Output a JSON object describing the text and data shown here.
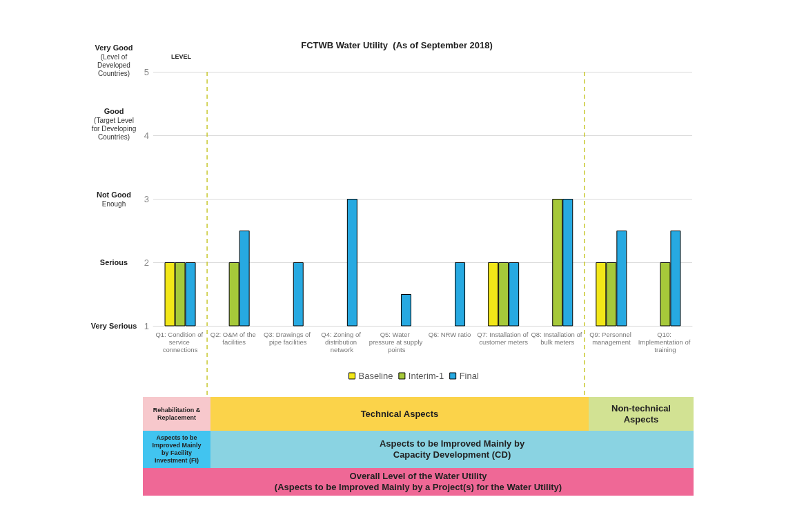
{
  "chart_data": {
    "type": "bar",
    "title": "FCTWB Water Utility  (As of September 2018)",
    "ylabel": "LEVEL",
    "categories": [
      "Q1: Condition of service connections",
      "Q2: O&M of the facilities",
      "Q3: Drawings of pipe facilities",
      "Q4: Zoning of distribution network",
      "Q5: Water pressure at supply points",
      "Q6: NRW ratio",
      "Q7: Installation of customer meters",
      "Q8: Installation of bulk meters",
      "Q9: Personnel management",
      "Q10: Implementation of training"
    ],
    "series": [
      {
        "name": "Baseline",
        "color": "#f2e718",
        "values": [
          2,
          null,
          null,
          null,
          null,
          null,
          2,
          null,
          2,
          null
        ]
      },
      {
        "name": "Interim-1",
        "color": "#a6c93a",
        "values": [
          2,
          2,
          null,
          null,
          null,
          null,
          2,
          3,
          2,
          2
        ]
      },
      {
        "name": "Final",
        "color": "#27a9e1",
        "values": [
          2,
          2.5,
          2,
          3,
          1.5,
          2,
          2,
          3,
          2.5,
          2.5
        ]
      }
    ],
    "ylim": [
      1,
      5
    ],
    "yticks": [
      1,
      2,
      3,
      4,
      5
    ],
    "grid": "y",
    "legend": "bottom",
    "annotations": [
      "Very Good\n(Level of\nDeveloped\nCountries)",
      "Good\n(Target Level\nfor Developing\nCountries)",
      "Not Good\nEnough",
      "Serious",
      "Very Serious",
      "Rehabilitation &\nReplacement",
      "Technical Aspects",
      "Non-technical\nAspects",
      "Aspects to be\nImproved Mainly\nby Facility\nInvestment (FI)",
      "Aspects to be Improved Mainly by\nCapacity Development (CD)",
      "Overall Level of the Water Utility\n(Aspects to be Improved Mainly by a Project(s) for the Water Utility)"
    ]
  }
}
